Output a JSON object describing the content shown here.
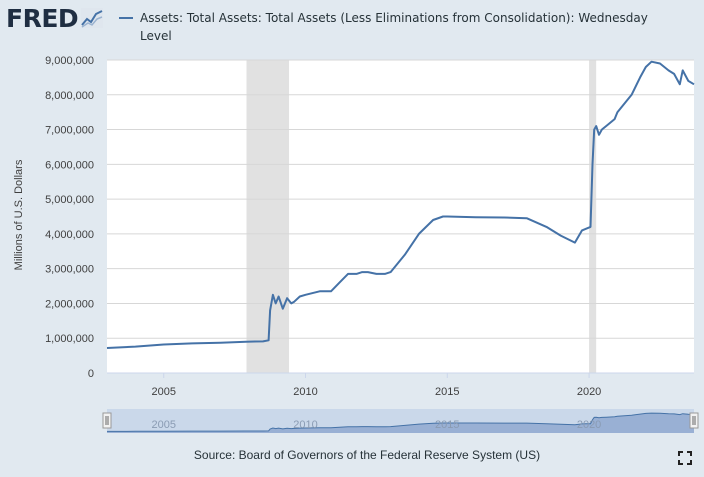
{
  "header": {
    "logo_text": "FRED",
    "logo_icon": "chart-trend-icon",
    "series_label": "Assets: Total Assets: Total Assets (Less Eliminations from Consolidation): Wednesday Level"
  },
  "colors": {
    "background": "#e1e9f0",
    "line": "#4572a7",
    "recession": "#e1e1e1",
    "navigator_fill": "#93acd2"
  },
  "chart_data": {
    "type": "line",
    "title": "",
    "ylabel": "Millions of U.S. Dollars",
    "xlabel": "",
    "xlim": [
      2003.0,
      2023.7
    ],
    "ylim": [
      0,
      9000000
    ],
    "y_ticks": [
      "0",
      "1,000,000",
      "2,000,000",
      "3,000,000",
      "4,000,000",
      "5,000,000",
      "6,000,000",
      "7,000,000",
      "8,000,000",
      "9,000,000"
    ],
    "x_ticks": [
      "2005",
      "2010",
      "2015",
      "2020"
    ],
    "recessions": [
      [
        2007.92,
        2009.42
      ],
      [
        2020.0,
        2020.25
      ]
    ],
    "grid": true,
    "series": [
      {
        "name": "Assets: Total Assets: Total Assets (Less Eliminations from Consolidation): Wednesday Level",
        "x": [
          2003.0,
          2004.0,
          2005.0,
          2006.0,
          2007.0,
          2007.9,
          2008.5,
          2008.7,
          2008.75,
          2008.85,
          2008.95,
          2009.05,
          2009.2,
          2009.35,
          2009.5,
          2009.6,
          2009.8,
          2010.0,
          2010.5,
          2010.9,
          2011.2,
          2011.5,
          2011.8,
          2012.0,
          2012.2,
          2012.5,
          2012.8,
          2013.0,
          2013.5,
          2014.0,
          2014.5,
          2014.85,
          2015.0,
          2016.0,
          2017.0,
          2017.8,
          2018.5,
          2019.0,
          2019.5,
          2019.75,
          2019.9,
          2020.05,
          2020.12,
          2020.18,
          2020.25,
          2020.35,
          2020.45,
          2020.6,
          2020.9,
          2021.0,
          2021.5,
          2021.8,
          2022.0,
          2022.2,
          2022.5,
          2022.8,
          2023.0,
          2023.2,
          2023.3,
          2023.5,
          2023.7
        ],
        "y": [
          720000,
          760000,
          820000,
          850000,
          870000,
          900000,
          910000,
          940000,
          1800000,
          2250000,
          2000000,
          2200000,
          1850000,
          2150000,
          2000000,
          2050000,
          2200000,
          2250000,
          2350000,
          2350000,
          2600000,
          2850000,
          2850000,
          2900000,
          2900000,
          2850000,
          2850000,
          2900000,
          3400000,
          4000000,
          4400000,
          4500000,
          4500000,
          4480000,
          4470000,
          4450000,
          4200000,
          3950000,
          3750000,
          4100000,
          4150000,
          4200000,
          6000000,
          7000000,
          7100000,
          6850000,
          7000000,
          7100000,
          7300000,
          7500000,
          8000000,
          8500000,
          8800000,
          8950000,
          8900000,
          8700000,
          8600000,
          8300000,
          8700000,
          8400000,
          8300000
        ]
      }
    ]
  },
  "navigator": {
    "x_ticks": [
      "2005",
      "2010",
      "2015",
      "2020"
    ]
  },
  "footer": {
    "source": "Source: Board of Governors of the Federal Reserve System (US)",
    "expand_icon": "expand-icon"
  }
}
